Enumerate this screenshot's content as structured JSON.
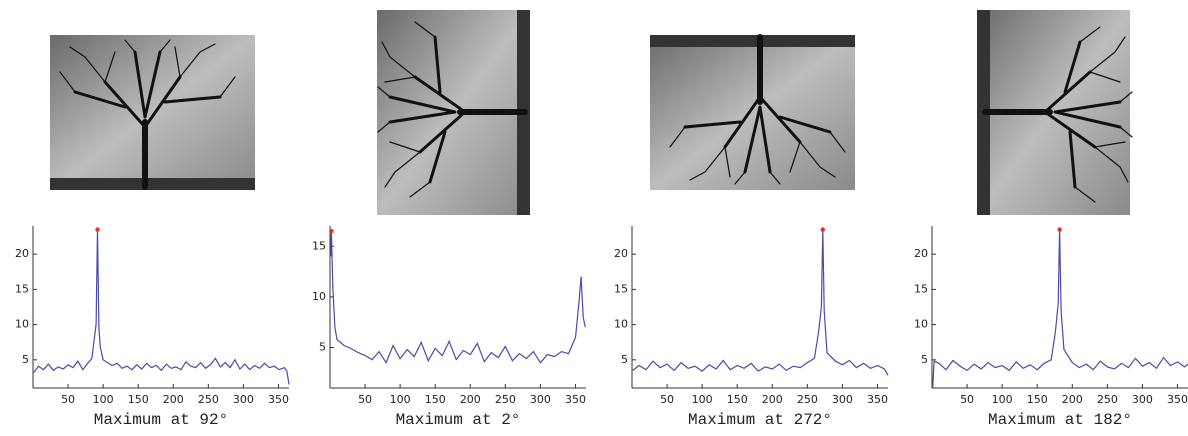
{
  "chart_data": [
    {
      "type": "line",
      "xlabel": "Maximum at 92°",
      "xlim": [
        0,
        365
      ],
      "ylim": [
        1,
        24
      ],
      "xticks": [
        50,
        100,
        150,
        200,
        250,
        300,
        350
      ],
      "yticks": [
        5,
        10,
        15,
        20
      ],
      "series": [
        {
          "color": "#4a4aa8",
          "x": [
            1,
            8,
            15,
            22,
            29,
            36,
            43,
            50,
            57,
            64,
            71,
            78,
            84,
            88,
            90,
            92,
            94,
            96,
            100,
            106,
            113,
            120,
            127,
            134,
            141,
            148,
            155,
            162,
            169,
            176,
            183,
            190,
            197,
            204,
            211,
            218,
            225,
            232,
            239,
            246,
            253,
            260,
            267,
            274,
            281,
            288,
            295,
            302,
            309,
            316,
            323,
            330,
            337,
            344,
            351,
            358,
            362,
            365
          ],
          "values": [
            3.2,
            4.1,
            3.6,
            4.4,
            3.5,
            4.0,
            3.7,
            4.3,
            3.9,
            4.8,
            3.6,
            4.5,
            5.2,
            8.5,
            10,
            23.5,
            9.5,
            6.8,
            5.0,
            4.6,
            4.2,
            4.5,
            3.8,
            4.1,
            3.6,
            4.3,
            3.7,
            4.5,
            3.9,
            4.2,
            3.5,
            4.4,
            3.8,
            4.0,
            3.6,
            4.7,
            4.1,
            3.9,
            4.6,
            3.8,
            4.3,
            5.2,
            4.0,
            4.6,
            3.9,
            5.0,
            3.7,
            4.4,
            3.6,
            4.2,
            3.8,
            4.5,
            3.9,
            4.1,
            3.6,
            3.9,
            3.4,
            1.5
          ]
        }
      ],
      "peak": {
        "x": 92,
        "y": 23.5,
        "color": "#e03030"
      }
    },
    {
      "type": "line",
      "xlabel": "Maximum at 2°",
      "xlim": [
        0,
        365
      ],
      "ylim": [
        1,
        17
      ],
      "xticks": [
        50,
        100,
        150,
        200,
        250,
        300,
        350
      ],
      "yticks": [
        5,
        10,
        15
      ],
      "series": [
        {
          "color": "#4a4aa8",
          "x": [
            1,
            2,
            4,
            7,
            10,
            20,
            30,
            40,
            50,
            60,
            70,
            80,
            90,
            100,
            110,
            120,
            130,
            140,
            150,
            160,
            170,
            180,
            190,
            200,
            210,
            220,
            230,
            240,
            250,
            260,
            270,
            280,
            290,
            300,
            310,
            320,
            330,
            340,
            345,
            350,
            355,
            358,
            361,
            364
          ],
          "values": [
            14,
            16.5,
            11,
            7,
            5.8,
            5.2,
            4.9,
            4.5,
            4.2,
            3.8,
            4.6,
            3.5,
            5.2,
            3.9,
            4.8,
            4.1,
            5.5,
            3.7,
            4.9,
            4.2,
            5.6,
            3.8,
            4.7,
            4.3,
            5.4,
            3.6,
            4.5,
            4.0,
            5.1,
            3.7,
            4.4,
            3.9,
            4.6,
            3.5,
            4.3,
            4.1,
            4.6,
            4.4,
            5.2,
            6.0,
            9.5,
            12.0,
            8.0,
            7.0
          ]
        }
      ],
      "peak": {
        "x": 2,
        "y": 16.5,
        "color": "#e03030"
      }
    },
    {
      "type": "line",
      "xlabel": "Maximum at 272°",
      "xlim": [
        0,
        365
      ],
      "ylim": [
        1,
        24
      ],
      "xticks": [
        50,
        100,
        150,
        200,
        250,
        300,
        350
      ],
      "yticks": [
        5,
        10,
        15,
        20
      ],
      "series": [
        {
          "color": "#4a4aa8",
          "x": [
            1,
            10,
            20,
            30,
            40,
            50,
            60,
            70,
            80,
            90,
            100,
            110,
            120,
            130,
            140,
            150,
            160,
            170,
            180,
            190,
            200,
            210,
            220,
            230,
            240,
            250,
            260,
            266,
            270,
            272,
            274,
            278,
            290,
            300,
            310,
            320,
            330,
            340,
            350,
            360,
            365
          ],
          "values": [
            3.5,
            4.2,
            3.6,
            4.8,
            3.9,
            4.4,
            3.5,
            4.6,
            3.8,
            4.1,
            3.4,
            4.3,
            3.7,
            4.9,
            3.6,
            4.2,
            3.8,
            4.5,
            3.4,
            4.0,
            3.7,
            4.4,
            3.5,
            4.1,
            3.9,
            4.6,
            5.2,
            9.0,
            12.5,
            23.5,
            12.0,
            6.0,
            4.8,
            4.3,
            4.9,
            3.9,
            4.5,
            3.8,
            4.2,
            3.7,
            2.8
          ]
        }
      ],
      "peak": {
        "x": 272,
        "y": 23.5,
        "color": "#e03030"
      }
    },
    {
      "type": "line",
      "xlabel": "Maximum at 182°",
      "xlim": [
        0,
        365
      ],
      "ylim": [
        1,
        24
      ],
      "xticks": [
        50,
        100,
        150,
        200,
        250,
        300,
        350
      ],
      "yticks": [
        5,
        10,
        15,
        20
      ],
      "series": [
        {
          "color": "#4a4aa8",
          "x": [
            1,
            3,
            10,
            20,
            30,
            40,
            50,
            60,
            70,
            80,
            90,
            100,
            110,
            120,
            130,
            140,
            150,
            160,
            170,
            176,
            180,
            182,
            184,
            188,
            200,
            210,
            220,
            230,
            240,
            250,
            260,
            270,
            280,
            290,
            300,
            310,
            320,
            330,
            340,
            350,
            360,
            365
          ],
          "values": [
            1.0,
            4.8,
            4.5,
            3.6,
            4.9,
            4.1,
            3.5,
            4.4,
            3.7,
            4.6,
            3.9,
            4.2,
            3.5,
            4.7,
            3.8,
            4.3,
            3.6,
            4.5,
            5.0,
            9.0,
            13.0,
            23.5,
            12.0,
            6.5,
            4.6,
            3.9,
            4.4,
            3.6,
            4.8,
            4.0,
            3.7,
            4.5,
            3.9,
            5.2,
            4.1,
            4.6,
            3.8,
            5.3,
            4.2,
            4.7,
            4.0,
            4.4
          ]
        }
      ],
      "peak": {
        "x": 182,
        "y": 23.5,
        "color": "#e03030"
      }
    }
  ]
}
